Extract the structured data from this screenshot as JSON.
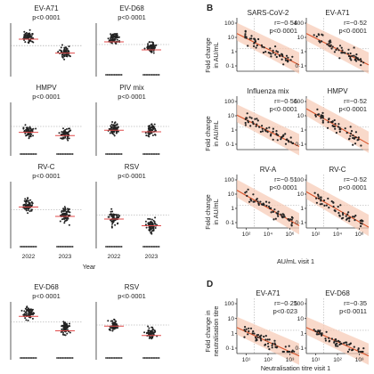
{
  "figure": {
    "panel_letters": [
      "B",
      "D"
    ]
  },
  "strip_panels": [
    {
      "title": "EV-A71",
      "p": "p<0·0001",
      "base": [
        0.28,
        0.55
      ],
      "red": [
        0.3,
        0.56
      ],
      "dash": 0.42,
      "zero": false
    },
    {
      "title": "EV-D68",
      "p": "p<0·0001",
      "base": [
        0.3,
        0.45
      ],
      "red": [
        0.35,
        0.5
      ],
      "dash": 0.4,
      "zero": true
    },
    {
      "title": "HMPV",
      "p": "p<0·0001",
      "base": [
        0.55,
        0.6
      ],
      "red": [
        0.56,
        0.62
      ],
      "dash": 0.45,
      "zero": true
    },
    {
      "title": "PIV mix",
      "p": "p<0·0001",
      "base": [
        0.5,
        0.52
      ],
      "red": [
        0.52,
        0.55
      ],
      "dash": 0.45,
      "zero": true
    },
    {
      "title": "RV-C",
      "p": "p<0·0001",
      "base": [
        0.35,
        0.5
      ],
      "red": [
        0.38,
        0.52
      ],
      "dash": 0.42,
      "zero": true
    },
    {
      "title": "RSV",
      "p": "p<0·0001",
      "base": [
        0.55,
        0.65
      ],
      "red": [
        0.56,
        0.66
      ],
      "dash": 0.5,
      "zero": true
    },
    {
      "title": "EV-D68",
      "p": "p<0·0001",
      "base": [
        0.2,
        0.45
      ],
      "red": [
        0.25,
        0.5
      ],
      "dash": 0.35,
      "zero": true
    },
    {
      "title": "RSV",
      "p": "p<0·0001",
      "base": [
        0.4,
        0.55
      ],
      "red": [
        0.42,
        0.58
      ],
      "dash": 0.4,
      "zero": true
    }
  ],
  "strip_axis": {
    "categories": [
      "2022",
      "2023"
    ],
    "xlabel": "Year"
  },
  "panel_b": {
    "letter": "B",
    "ylabel_line1": "Fold change",
    "ylabel_line2": "in AU/mL",
    "y_ticks": [
      "100",
      "10",
      "1",
      "0·1"
    ],
    "x_ticks": [
      "10²",
      "10⁴",
      "10⁶"
    ],
    "xlabel": "AU/mL visit 1",
    "panels": [
      {
        "title": "SARS-CoV-2",
        "r": "r=−0·54",
        "p": "p<0·0001",
        "intercept": 1.4,
        "slope": -0.4
      },
      {
        "title": "EV-A71",
        "r": "r=−0·52",
        "p": "p<0·0001",
        "intercept": 1.4,
        "slope": -0.4
      },
      {
        "title": "Influenza mix",
        "r": "r=−0·56",
        "p": "p<0·0001",
        "intercept": 1.2,
        "slope": -0.4
      },
      {
        "title": "HMPV",
        "r": "r=−0·52",
        "p": "p<0·0001",
        "intercept": 1.6,
        "slope": -0.45
      },
      {
        "title": "RV-A",
        "r": "r=−0·51",
        "p": "p<0·0001",
        "intercept": 1.4,
        "slope": -0.45
      },
      {
        "title": "RV-C",
        "r": "r=−0·52",
        "p": "p<0·0001",
        "intercept": 1.3,
        "slope": -0.45
      }
    ]
  },
  "panel_d": {
    "letter": "D",
    "ylabel_line1": "Fold change in",
    "ylabel_line2": "neutralisation titre",
    "y_ticks": [
      "100",
      "10",
      "1",
      "0·1"
    ],
    "x_ticks": [
      "10¹",
      "10²",
      "10³"
    ],
    "xlabel": "Neutralisation titre visit 1",
    "panels": [
      {
        "title": "EV-A71",
        "r": "r=−0·25",
        "p": "p<0·023",
        "intercept": 0.6,
        "slope": -0.35
      },
      {
        "title": "EV-D68",
        "r": "r=−0·35",
        "p": "p<0·0011",
        "intercept": 0.6,
        "slope": -0.35
      }
    ]
  },
  "colors": {
    "point": "#222222",
    "fit_line": "#d9542b",
    "ci_band": "#f6c9b3",
    "median": "#e04a4a",
    "reference": "#9a9a9a"
  },
  "chart_data": [
    {
      "type": "scatter",
      "title": "EV-A71 (strip)",
      "categories": [
        "2022",
        "2023"
      ],
      "xlabel": "Year",
      "annotation": "p<0·0001"
    },
    {
      "type": "scatter",
      "title": "SARS-CoV-2",
      "xlabel": "AU/mL visit 1",
      "ylabel": "Fold change in AU/mL",
      "y_log": true,
      "x_log": true,
      "annotation": [
        "r=−0·54",
        "p<0·0001"
      ],
      "ylim": [
        0.1,
        100
      ]
    },
    {
      "type": "scatter",
      "title": "EV-A71",
      "xlabel": "Neutralisation titre visit 1",
      "ylabel": "Fold change in neutralisation titre",
      "y_log": true,
      "x_log": true,
      "annotation": [
        "r=−0·25",
        "p<0·023"
      ],
      "ylim": [
        0.1,
        100
      ]
    }
  ]
}
